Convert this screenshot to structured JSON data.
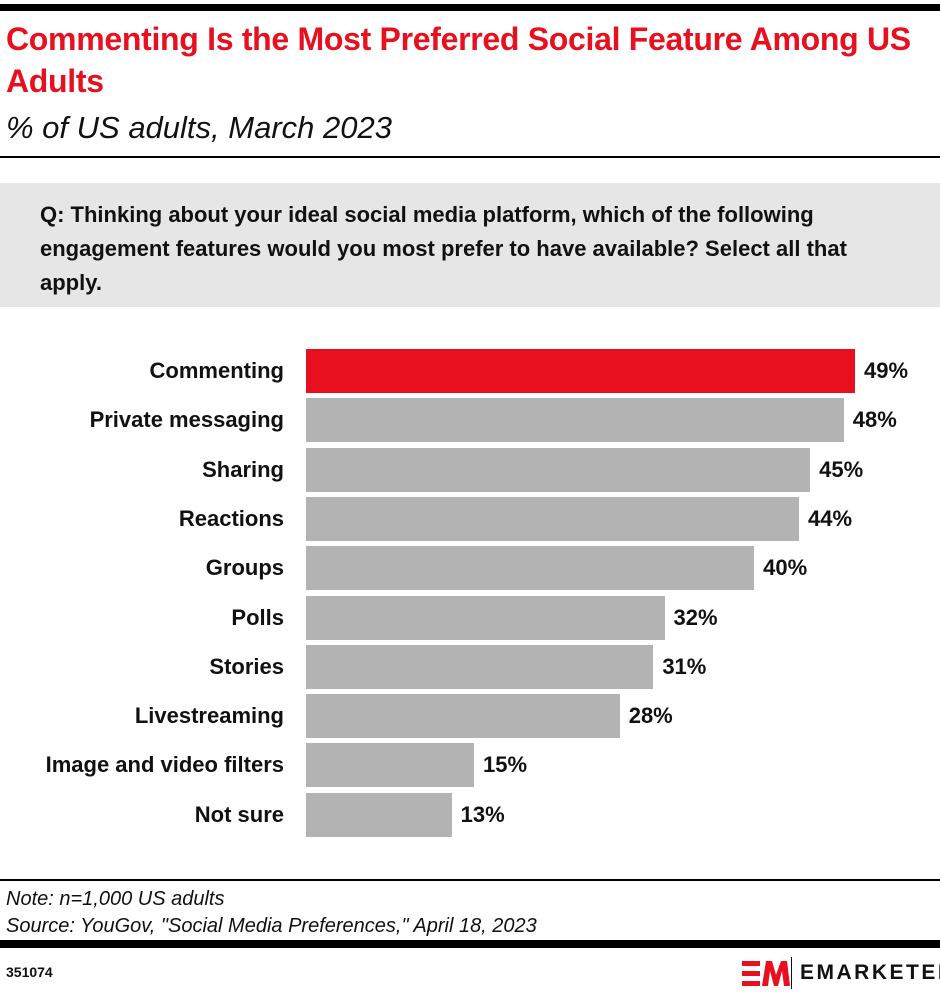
{
  "header": {
    "title": "Commenting Is the Most Preferred Social Feature Among US Adults",
    "subtitle": "% of US adults, March 2023"
  },
  "question": "Q: Thinking about your ideal social media platform, which of the following engagement features would you most prefer to have available? Select all that apply.",
  "chart_data": {
    "type": "bar",
    "orientation": "horizontal",
    "categories": [
      "Commenting",
      "Private messaging",
      "Sharing",
      "Reactions",
      "Groups",
      "Polls",
      "Stories",
      "Livestreaming",
      "Image and video filters",
      "Not sure"
    ],
    "values": [
      49,
      48,
      45,
      44,
      40,
      32,
      31,
      28,
      15,
      13
    ],
    "value_labels": [
      "49%",
      "48%",
      "45%",
      "44%",
      "40%",
      "32%",
      "31%",
      "28%",
      "15%",
      "13%"
    ],
    "unit": "%",
    "xlim": [
      0,
      49
    ],
    "grid": false,
    "colors": {
      "highlight": "#e8101e",
      "default": "#b3b3b3"
    }
  },
  "footer": {
    "note": "Note: n=1,000 US adults",
    "source": "Source: YouGov, \"Social Media Preferences,\" April 18, 2023",
    "chart_id": "351074",
    "brand": "EMARKETER"
  }
}
